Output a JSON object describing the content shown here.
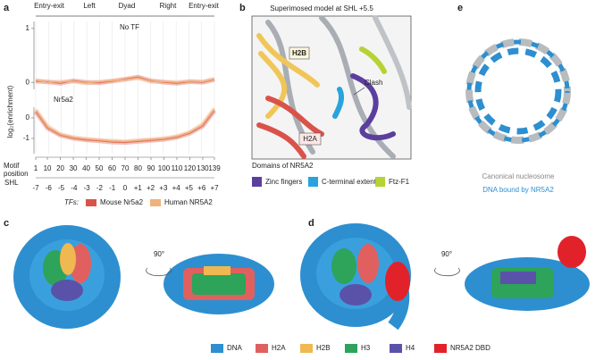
{
  "panel_labels": [
    "a",
    "b",
    "c",
    "d",
    "e"
  ],
  "chart_data": {
    "type": "line",
    "regions": [
      "Entry-exit",
      "Left",
      "Dyad",
      "Right",
      "Entry-exit"
    ],
    "ylabel": "log₂(enrichment)",
    "xlabel": "Motif position",
    "xlim": [
      1,
      139
    ],
    "xticks": [
      1,
      10,
      20,
      30,
      40,
      50,
      60,
      70,
      80,
      90,
      100,
      110,
      120,
      130,
      139
    ],
    "x": [
      1,
      10,
      20,
      30,
      40,
      50,
      60,
      70,
      80,
      90,
      100,
      110,
      120,
      130,
      139
    ],
    "shl_label": "SHL",
    "shl_lim": [
      -7,
      7
    ],
    "shl_ticks": [
      -7,
      -6,
      -5,
      -4,
      -3,
      -2,
      -1,
      0,
      {
        "value": 1,
        "label": "+1"
      },
      {
        "value": 2,
        "label": "+2"
      },
      {
        "value": 3,
        "label": "+3"
      },
      {
        "value": 4,
        "label": "+4"
      },
      {
        "value": 5,
        "label": "+5"
      },
      {
        "value": 6,
        "label": "+6"
      },
      {
        "value": 7,
        "label": "+7"
      }
    ],
    "legend_title": "TFs:",
    "series": [
      {
        "name": "Mouse Nr5a2",
        "color": "#d9534a"
      },
      {
        "name": "Human NR5A2",
        "color": "#f0b27a"
      }
    ],
    "subplots": [
      {
        "label": "No TF",
        "ylim": [
          -0.13,
          1.13
        ],
        "yticks": [
          1,
          0
        ],
        "values": [
          [
            0.02,
            0.01,
            -0.02,
            0.03,
            0.0,
            -0.01,
            0.02,
            0.06,
            0.1,
            0.03,
            0.0,
            -0.02,
            0.01,
            0.0,
            0.05
          ],
          [
            0.04,
            0.0,
            0.01,
            0.02,
            -0.01,
            0.01,
            0.03,
            0.05,
            0.08,
            0.02,
            0.01,
            0.0,
            0.02,
            0.01,
            0.06
          ]
        ]
      },
      {
        "label": "Nr5a2",
        "ylim": [
          -1.74,
          0.52
        ],
        "yticks": [
          0,
          -1
        ],
        "values": [
          [
            0.3,
            -0.5,
            -0.85,
            -1.0,
            -1.08,
            -1.12,
            -1.18,
            -1.2,
            -1.15,
            -1.1,
            -1.05,
            -0.95,
            -0.75,
            -0.4,
            0.35
          ],
          [
            0.4,
            -0.4,
            -0.8,
            -0.95,
            -1.02,
            -1.08,
            -1.12,
            -1.15,
            -1.1,
            -1.05,
            -1.0,
            -0.9,
            -0.7,
            -0.3,
            0.45
          ]
        ]
      }
    ]
  },
  "panel_b": {
    "title": "Superimosed model at SHL +5.5",
    "labels": [
      "H2B",
      "Clash",
      "H2A"
    ],
    "legend_title": "Domains of NR5A2",
    "legend": [
      {
        "name": "Zinc fingers",
        "color": "#5b3f9e"
      },
      {
        "name": "C-terminal extention",
        "color": "#27a4dd"
      },
      {
        "name": "Ftz-F1",
        "color": "#b5d334"
      }
    ]
  },
  "panel_e": {
    "captions": [
      "Canonical nucleosome",
      "DNA bound by NR5A2"
    ]
  },
  "rotation": [
    "90°",
    "90°"
  ],
  "legend": [
    {
      "name": "DNA",
      "color": "#2d8fd0"
    },
    {
      "name": "H2A",
      "color": "#e0605f"
    },
    {
      "name": "H2B",
      "color": "#f0b850"
    },
    {
      "name": "H3",
      "color": "#2ea35a"
    },
    {
      "name": "H4",
      "color": "#5a52a8"
    },
    {
      "name": "NR5A2 DBD",
      "color": "#e2222a"
    }
  ]
}
